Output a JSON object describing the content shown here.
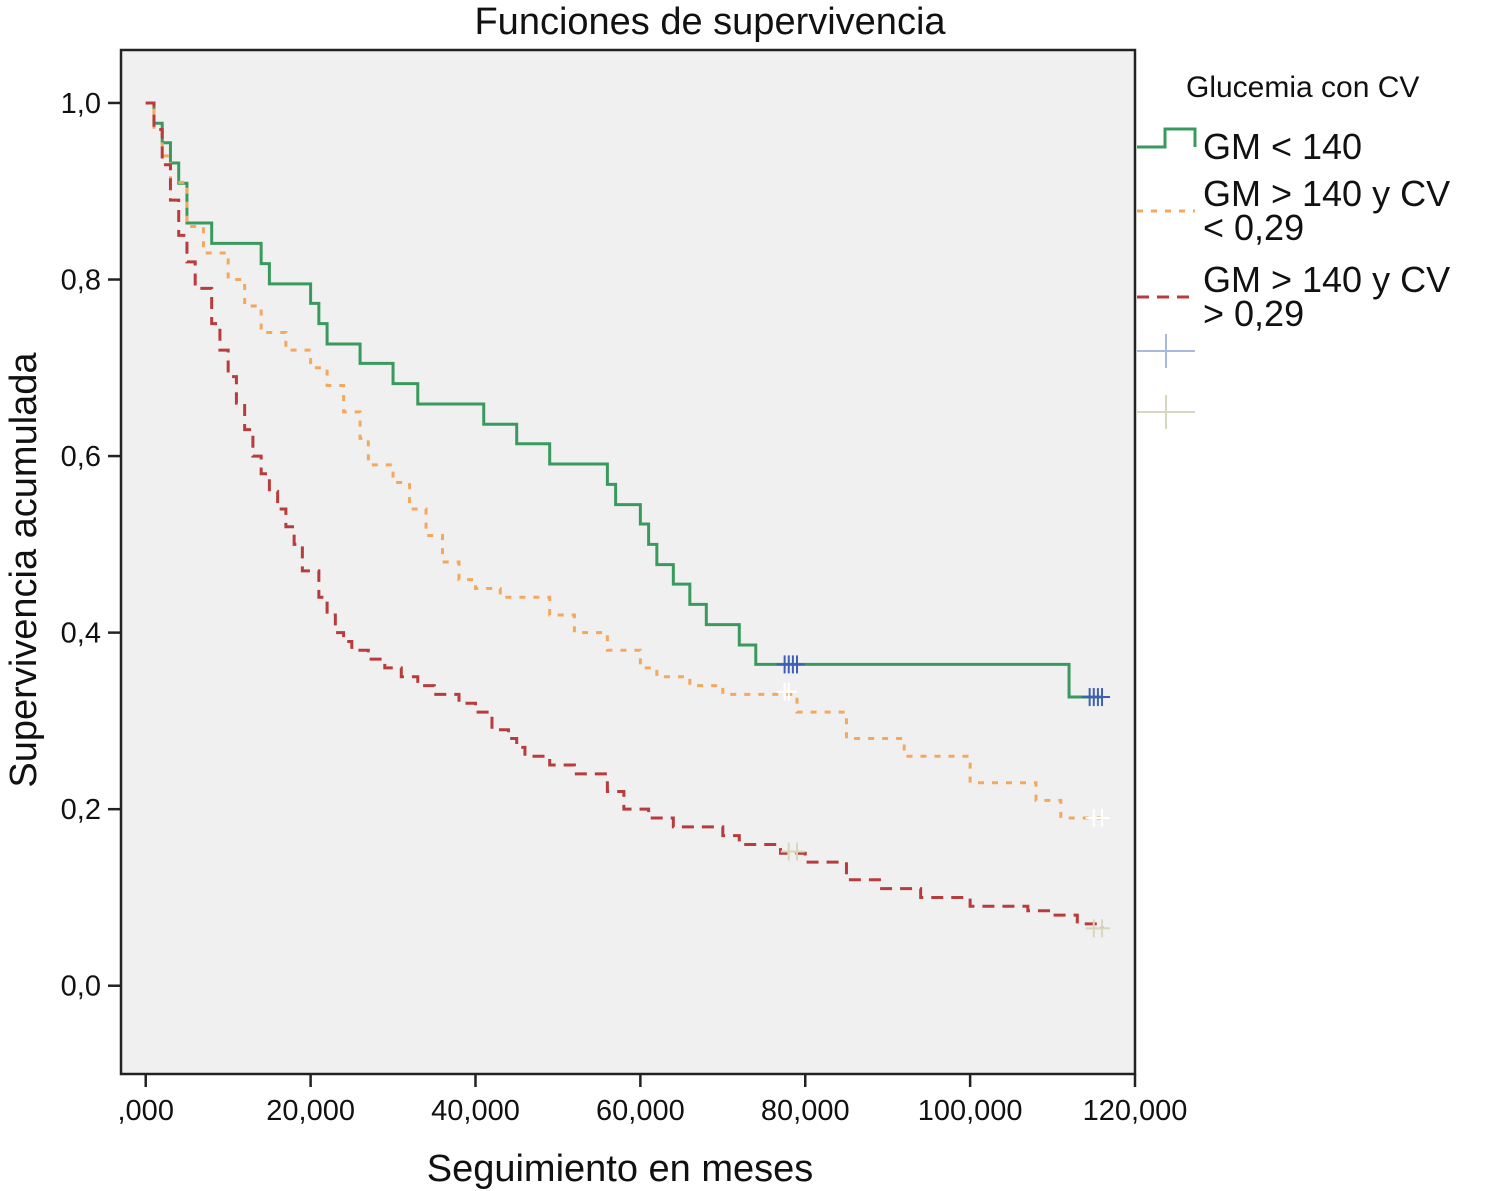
{
  "chart_data": {
    "type": "line",
    "title": "Funciones de supervivencia",
    "xlabel": "Seguimiento en meses",
    "ylabel": "Supervivencia acumulada",
    "xlim": [
      -3,
      120
    ],
    "ylim": [
      -0.1,
      1.06
    ],
    "x_ticks": [
      0,
      20,
      40,
      60,
      80,
      100,
      120
    ],
    "x_tick_labels": [
      ",000",
      "20,000",
      "40,000",
      "60,000",
      "80,000",
      "100,000",
      "120,000"
    ],
    "y_ticks": [
      0,
      0.2,
      0.4,
      0.6,
      0.8,
      1.0
    ],
    "y_tick_labels": [
      "0,0",
      "0,2",
      "0,4",
      "0,6",
      "0,8",
      "1,0"
    ],
    "grid": false,
    "plot_background": "#f0f0f0",
    "legend": {
      "title": "Glucemia con CV",
      "placement": "right",
      "censored_markers": [
        {
          "color": "#a9b9df"
        },
        {
          "color": "#d8d6bd"
        }
      ]
    },
    "series": [
      {
        "name": "GM < 140",
        "color": "#3a9a5e",
        "style": "solid",
        "x": [
          0,
          1,
          2,
          3,
          4,
          5,
          8,
          14,
          15,
          20,
          21,
          22,
          26,
          30,
          33,
          41,
          45,
          49,
          56,
          57,
          60,
          61,
          62,
          64,
          66,
          68,
          72,
          74,
          75,
          77,
          112,
          116
        ],
        "y": [
          1.0,
          0.977,
          0.955,
          0.932,
          0.909,
          0.864,
          0.841,
          0.818,
          0.795,
          0.773,
          0.75,
          0.727,
          0.705,
          0.682,
          0.659,
          0.636,
          0.614,
          0.591,
          0.568,
          0.545,
          0.523,
          0.5,
          0.477,
          0.455,
          0.432,
          0.409,
          0.386,
          0.364,
          0.364,
          0.364,
          0.327,
          0.327
        ],
        "censored_x": [
          77.5,
          78,
          78.5,
          79,
          114.5,
          115,
          115.5,
          116
        ],
        "censored_y": [
          0.364,
          0.364,
          0.364,
          0.364,
          0.327,
          0.327,
          0.327,
          0.327
        ]
      },
      {
        "name": "GM > 140 y CV < 0,29",
        "color": "#f5a85c",
        "style": "dotted",
        "x": [
          0,
          1,
          2,
          3,
          5,
          7,
          10,
          12,
          14,
          17,
          20,
          22,
          24,
          26,
          27,
          30,
          32,
          34,
          36,
          38,
          40,
          43,
          49,
          52,
          56,
          60,
          62,
          66,
          70,
          76,
          79,
          85,
          92,
          100,
          108,
          111,
          116
        ],
        "y": [
          1.0,
          0.97,
          0.94,
          0.91,
          0.86,
          0.83,
          0.8,
          0.77,
          0.74,
          0.72,
          0.7,
          0.68,
          0.65,
          0.62,
          0.59,
          0.57,
          0.54,
          0.51,
          0.48,
          0.46,
          0.45,
          0.44,
          0.42,
          0.4,
          0.38,
          0.36,
          0.35,
          0.34,
          0.33,
          0.33,
          0.31,
          0.28,
          0.26,
          0.23,
          0.21,
          0.19,
          0.19
        ],
        "censored_x": [
          77.5,
          78,
          115,
          116
        ],
        "censored_y": [
          0.333,
          0.333,
          0.19,
          0.19
        ]
      },
      {
        "name": "GM > 140 y CV > 0,29",
        "color": "#b83c3c",
        "style": "dashed",
        "x": [
          0,
          1,
          2,
          3,
          4,
          5,
          6,
          8,
          9,
          10,
          11,
          12,
          13,
          14,
          15,
          16,
          17,
          18,
          19,
          21,
          22,
          23,
          24,
          25,
          27,
          29,
          31,
          33,
          35,
          38,
          40,
          42,
          44,
          45,
          46,
          49,
          52,
          56,
          58,
          61,
          64,
          70,
          72,
          77,
          80,
          85,
          89,
          94,
          100,
          107,
          110,
          113,
          116
        ],
        "y": [
          1.0,
          0.97,
          0.93,
          0.89,
          0.85,
          0.82,
          0.79,
          0.75,
          0.72,
          0.69,
          0.66,
          0.63,
          0.6,
          0.58,
          0.56,
          0.54,
          0.52,
          0.5,
          0.47,
          0.44,
          0.42,
          0.4,
          0.39,
          0.38,
          0.37,
          0.36,
          0.35,
          0.34,
          0.33,
          0.32,
          0.31,
          0.29,
          0.28,
          0.27,
          0.26,
          0.25,
          0.24,
          0.22,
          0.2,
          0.19,
          0.18,
          0.17,
          0.16,
          0.15,
          0.14,
          0.12,
          0.11,
          0.1,
          0.09,
          0.085,
          0.08,
          0.07,
          0.065
        ],
        "censored_x": [
          78,
          79,
          115,
          116
        ],
        "censored_y": [
          0.152,
          0.152,
          0.065,
          0.065
        ]
      }
    ]
  }
}
